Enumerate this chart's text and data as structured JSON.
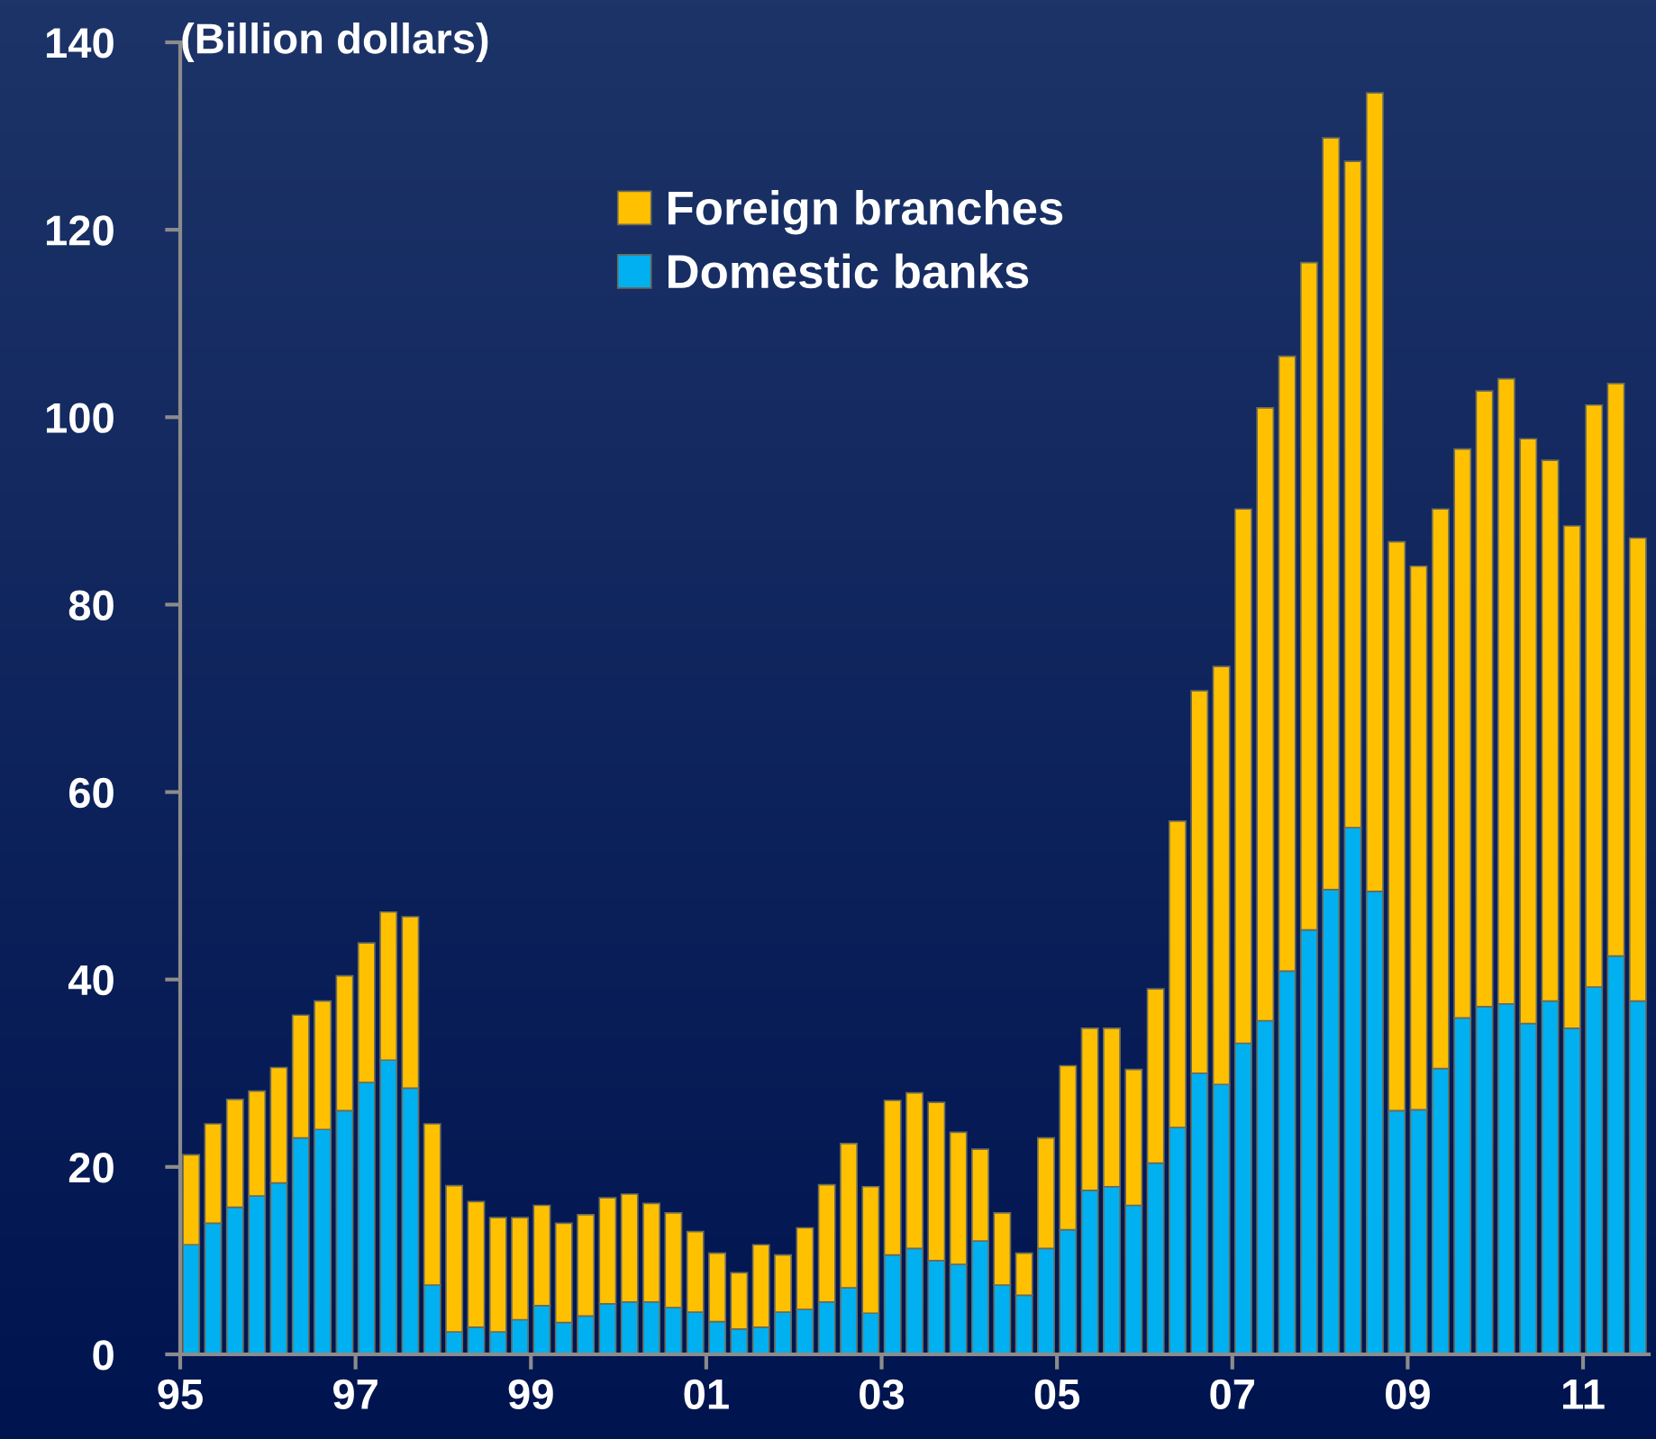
{
  "chart_data": {
    "type": "bar",
    "stacked": true,
    "ylabel": "(Billion dollars)",
    "x": [
      1995.125,
      1995.375,
      1995.625,
      1995.875,
      1996.125,
      1996.375,
      1996.625,
      1996.875,
      1997.125,
      1997.375,
      1997.625,
      1997.875,
      1998.125,
      1998.375,
      1998.625,
      1998.875,
      1999.125,
      1999.375,
      1999.625,
      1999.875,
      2000.125,
      2000.375,
      2000.625,
      2000.875,
      2001.125,
      2001.375,
      2001.625,
      2001.875,
      2002.125,
      2002.375,
      2002.625,
      2002.875,
      2003.125,
      2003.375,
      2003.625,
      2003.875,
      2004.125,
      2004.375,
      2004.625,
      2004.875,
      2005.125,
      2005.375,
      2005.625,
      2005.875,
      2006.125,
      2006.375,
      2006.625,
      2006.875,
      2007.125,
      2007.375,
      2007.625,
      2007.875,
      2008.125,
      2008.375,
      2008.625,
      2008.875,
      2009.125,
      2009.375,
      2009.625,
      2009.875,
      2010.125,
      2010.375,
      2010.625,
      2010.875,
      2011.125,
      2011.375,
      2011.625
    ],
    "series": [
      {
        "name": "Domestic banks",
        "color": "#00b0f0",
        "values": [
          11.7,
          14.0,
          15.7,
          16.9,
          18.3,
          23.1,
          24.0,
          26.0,
          29.0,
          31.4,
          28.4,
          7.4,
          2.4,
          2.9,
          2.4,
          3.7,
          5.2,
          3.4,
          4.1,
          5.4,
          5.6,
          5.6,
          5.0,
          4.5,
          3.5,
          2.7,
          2.9,
          4.5,
          4.8,
          5.6,
          7.1,
          4.4,
          10.6,
          11.3,
          10.0,
          9.6,
          12.1,
          7.4,
          6.3,
          11.3,
          13.3,
          17.5,
          17.9,
          15.9,
          20.4,
          24.2,
          30.0,
          28.8,
          33.2,
          35.6,
          40.9,
          45.3,
          49.6,
          56.2,
          49.4,
          26.0,
          26.1,
          30.5,
          35.9,
          37.1,
          37.4,
          35.3,
          37.7,
          34.8,
          39.2,
          42.5,
          37.7
        ]
      },
      {
        "name": "Foreign branches",
        "color": "#ffc000",
        "values": [
          9.6,
          10.6,
          11.5,
          11.2,
          12.3,
          13.1,
          13.7,
          14.4,
          14.9,
          15.8,
          18.3,
          17.2,
          15.6,
          13.4,
          12.2,
          10.9,
          10.7,
          10.6,
          10.8,
          11.3,
          11.5,
          10.5,
          10.1,
          8.6,
          7.3,
          6.0,
          8.8,
          6.1,
          8.7,
          12.5,
          15.4,
          13.5,
          16.5,
          16.6,
          16.9,
          14.1,
          9.8,
          7.7,
          4.5,
          11.8,
          17.5,
          17.3,
          16.9,
          14.5,
          18.6,
          32.7,
          40.8,
          44.6,
          57.0,
          65.4,
          65.6,
          71.2,
          80.2,
          71.1,
          85.2,
          60.7,
          58.0,
          59.7,
          60.7,
          65.7,
          66.7,
          62.4,
          57.7,
          53.6,
          62.1,
          61.1,
          49.4
        ]
      }
    ],
    "xlim": [
      1995,
      2011.75
    ],
    "xticks": [
      {
        "value": 1995,
        "label": "95"
      },
      {
        "value": 1997,
        "label": "97"
      },
      {
        "value": 1999,
        "label": "99"
      },
      {
        "value": 2001,
        "label": "01"
      },
      {
        "value": 2003,
        "label": "03"
      },
      {
        "value": 2005,
        "label": "05"
      },
      {
        "value": 2007,
        "label": "07"
      },
      {
        "value": 2009,
        "label": "09"
      },
      {
        "value": 2011,
        "label": "11"
      }
    ],
    "ylim": [
      0,
      140
    ],
    "yticks": [
      0,
      20,
      40,
      60,
      80,
      100,
      120,
      140
    ],
    "grid": false,
    "legend": "top"
  }
}
